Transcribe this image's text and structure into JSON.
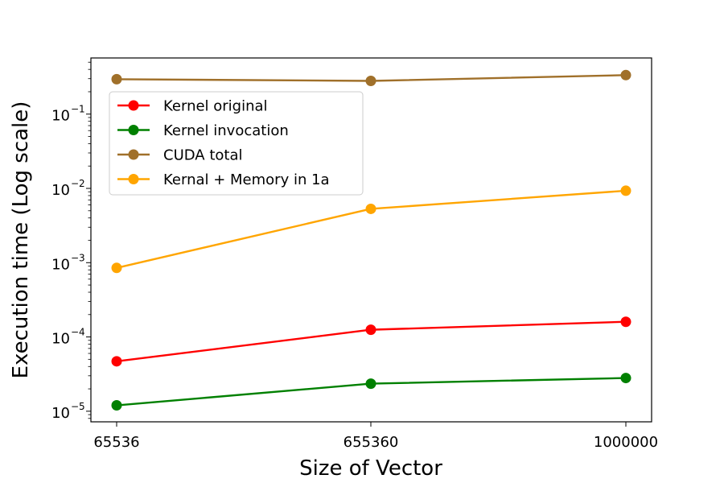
{
  "chart_data": {
    "type": "line",
    "title": "",
    "xlabel": "Size of Vector",
    "ylabel": "Execution time (Log scale)",
    "x_scale": "categorical",
    "y_scale": "log",
    "ylim": [
      7.2e-06,
      0.57
    ],
    "categories": [
      "65536",
      "655360",
      "1000000"
    ],
    "y_major_ticks": [
      {
        "value": 1e-05,
        "base": "10",
        "exp": "−5"
      },
      {
        "value": 0.0001,
        "base": "10",
        "exp": "−4"
      },
      {
        "value": 0.001,
        "base": "10",
        "exp": "−3"
      },
      {
        "value": 0.01,
        "base": "10",
        "exp": "−2"
      },
      {
        "value": 0.1,
        "base": "10",
        "exp": "−1"
      }
    ],
    "grid": false,
    "legend_position": "upper-left",
    "series": [
      {
        "name": "Kernel original",
        "color": "#ff0000",
        "values": [
          4.7e-05,
          0.000125,
          0.00016
        ]
      },
      {
        "name": "Kernel invocation",
        "color": "#008000",
        "values": [
          1.2e-05,
          2.35e-05,
          2.8e-05
        ]
      },
      {
        "name": "CUDA total",
        "color": "#a0702a",
        "values": [
          0.295,
          0.28,
          0.335
        ]
      },
      {
        "name": "Kernal + Memory in 1a",
        "color": "#ffa500",
        "values": [
          0.00085,
          0.0053,
          0.0093
        ]
      }
    ]
  }
}
